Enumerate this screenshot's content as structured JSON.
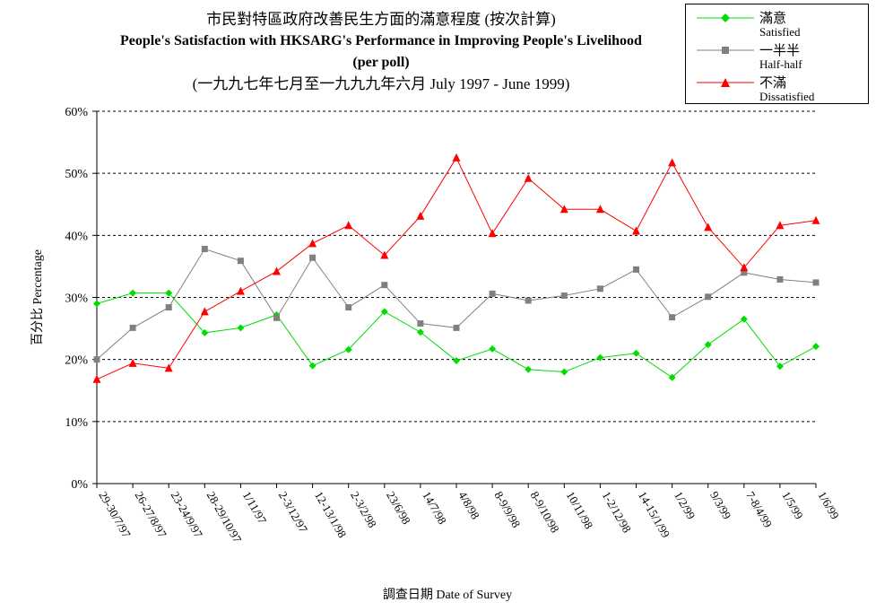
{
  "chart_data": {
    "type": "line",
    "title_zh": "市民對特區政府改善民生方面的滿意程度 (按次計算)",
    "title_en": "People's Satisfaction with HKSARG's Performance in Improving People's Livelihood",
    "subtitle": "(per poll)",
    "period": "(一九九七年七月至一九九九年六月 July 1997 - June 1999)",
    "xlabel": "調查日期 Date of Survey",
    "ylabel": "百分比 Percentage",
    "ylim": [
      0,
      60
    ],
    "yticks": [
      "0%",
      "10%",
      "20%",
      "30%",
      "40%",
      "50%",
      "60%"
    ],
    "grid": true,
    "legend_position": "top-right",
    "categories": [
      "29-30/7/97",
      "26-27/8/97",
      "23-24/9/97",
      "28-29/10/97",
      "1/11/97",
      "2-3/12/97",
      "12-13/1/98",
      "2-3/2/98",
      "23/6/98",
      "14/7/98",
      "4/8/98",
      "8-9/9/98",
      "8-9/10/98",
      "10/11/98",
      "1-2/12/98",
      "14-15/1/99",
      "1/2/99",
      "9/3/99",
      "7-8/4/99",
      "1/5/99",
      "1/6/99"
    ],
    "series": [
      {
        "name_zh": "滿意",
        "name": "Satisfied",
        "color": "#00dd00",
        "marker": "diamond",
        "values": [
          29.0,
          30.7,
          30.7,
          24.3,
          25.1,
          27.2,
          19.0,
          21.6,
          27.7,
          24.4,
          19.8,
          21.7,
          18.4,
          18.0,
          20.3,
          21.0,
          17.1,
          22.4,
          26.5,
          18.9,
          22.1
        ]
      },
      {
        "name_zh": "一半半",
        "name": "Half-half",
        "color": "#808080",
        "marker": "square",
        "values": [
          20.0,
          25.1,
          28.4,
          37.8,
          35.9,
          26.7,
          36.4,
          28.4,
          32.0,
          25.8,
          25.1,
          30.6,
          29.5,
          30.3,
          31.4,
          34.5,
          26.8,
          30.1,
          34.0,
          32.9,
          32.4
        ]
      },
      {
        "name_zh": "不滿",
        "name": "Dissatisfied",
        "color": "#ff0000",
        "marker": "triangle",
        "values": [
          16.8,
          19.4,
          18.6,
          27.7,
          31.0,
          34.2,
          38.7,
          41.6,
          36.8,
          43.1,
          52.5,
          40.3,
          49.2,
          44.2,
          44.2,
          40.7,
          51.7,
          41.3,
          34.8,
          41.6,
          42.4
        ]
      }
    ]
  }
}
